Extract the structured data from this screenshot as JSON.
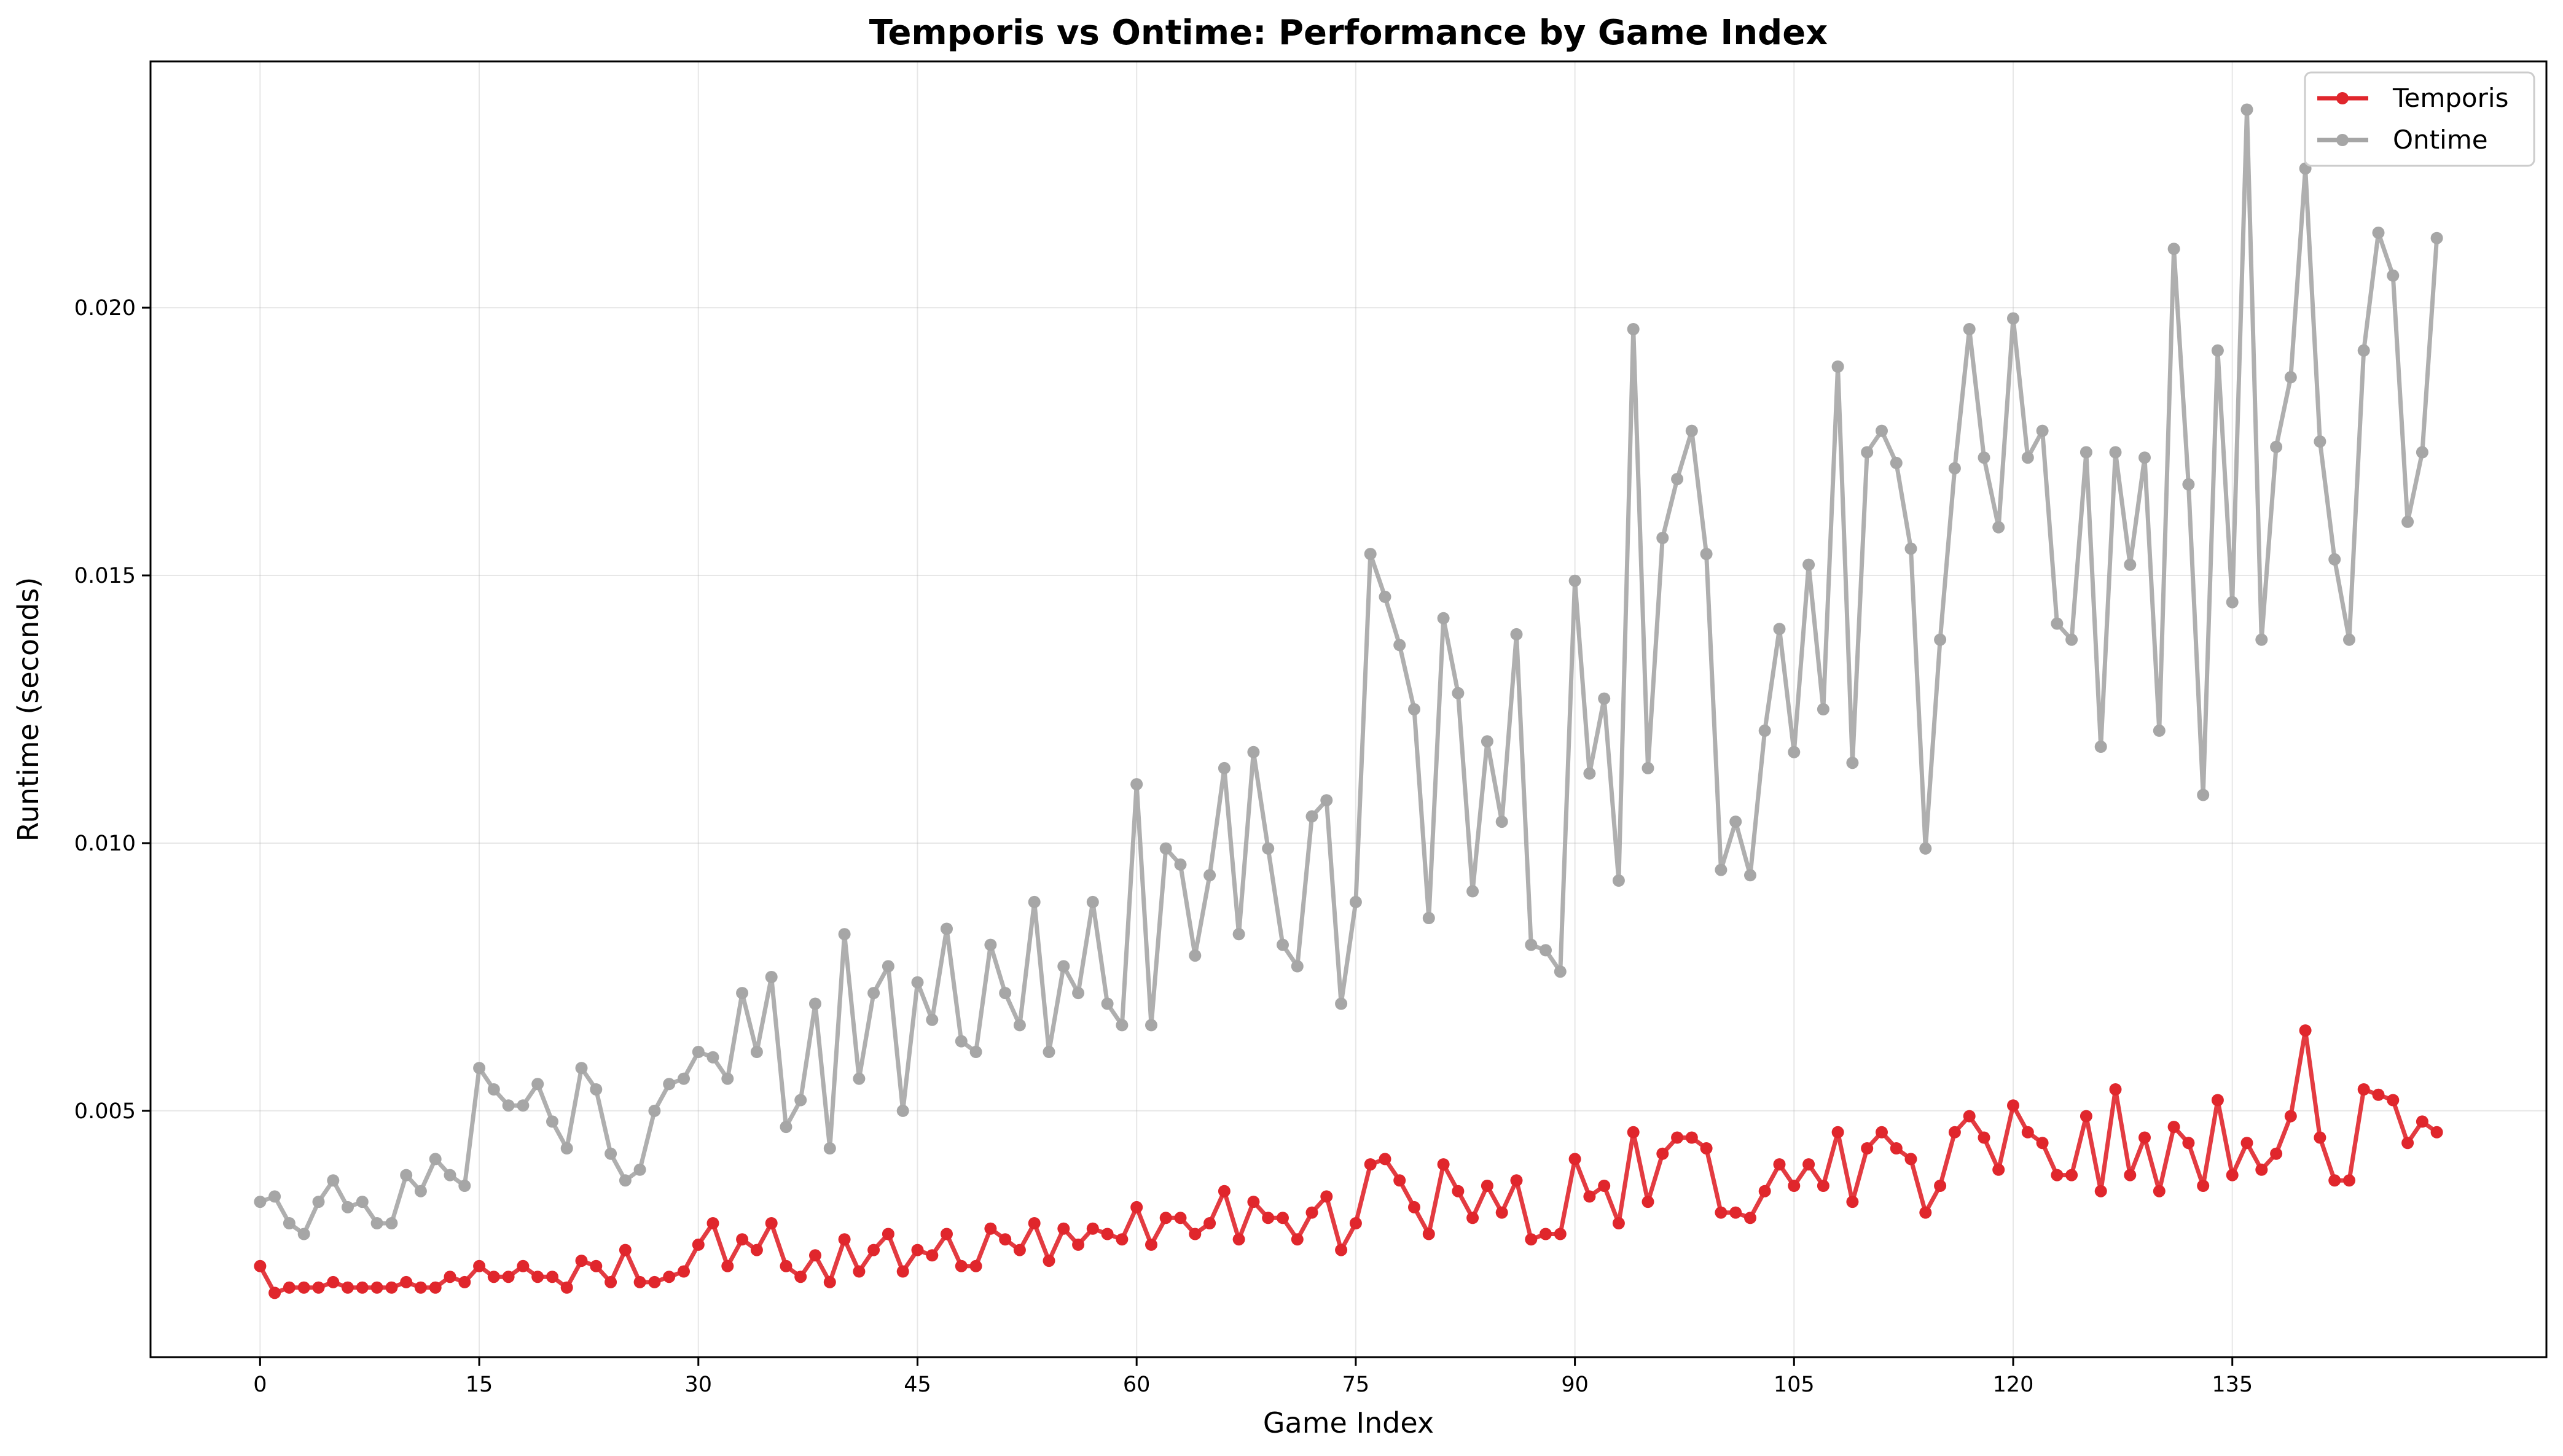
{
  "chart_data": {
    "type": "line",
    "title": "Temporis vs Ontime: Performance by Game Index",
    "xlabel": "Game Index",
    "ylabel": "Runtime (seconds)",
    "xlim": [
      -7.5,
      156.5
    ],
    "ylim": [
      0.0004,
      0.0246
    ],
    "x_ticks": [
      0,
      15,
      30,
      45,
      60,
      75,
      90,
      105,
      120,
      135
    ],
    "y_ticks": [
      0.005,
      0.01,
      0.015,
      0.02
    ],
    "y_tick_labels": [
      "0.005",
      "0.010",
      "0.015",
      "0.020"
    ],
    "grid": true,
    "legend_position": "top-right",
    "series": [
      {
        "name": "Temporis",
        "color": "#e0262c",
        "values": [
          0.0021,
          0.0016,
          0.0017,
          0.0017,
          0.0017,
          0.0018,
          0.0017,
          0.0017,
          0.0017,
          0.0017,
          0.0018,
          0.0017,
          0.0017,
          0.0019,
          0.0018,
          0.0021,
          0.0019,
          0.0019,
          0.0021,
          0.0019,
          0.0019,
          0.0017,
          0.0022,
          0.0021,
          0.0018,
          0.0024,
          0.0018,
          0.0018,
          0.0019,
          0.002,
          0.0025,
          0.0029,
          0.0021,
          0.0026,
          0.0024,
          0.0029,
          0.0021,
          0.0019,
          0.0023,
          0.0018,
          0.0026,
          0.002,
          0.0024,
          0.0027,
          0.002,
          0.0024,
          0.0023,
          0.0027,
          0.0021,
          0.0021,
          0.0028,
          0.0026,
          0.0024,
          0.0029,
          0.0022,
          0.0028,
          0.0025,
          0.0028,
          0.0027,
          0.0026,
          0.0032,
          0.0025,
          0.003,
          0.003,
          0.0027,
          0.0029,
          0.0035,
          0.0026,
          0.0033,
          0.003,
          0.003,
          0.0026,
          0.0031,
          0.0034,
          0.0024,
          0.0029,
          0.004,
          0.0041,
          0.0037,
          0.0032,
          0.0027,
          0.004,
          0.0035,
          0.003,
          0.0036,
          0.0031,
          0.0037,
          0.0026,
          0.0027,
          0.0027,
          0.0041,
          0.0034,
          0.0036,
          0.0029,
          0.0046,
          0.0033,
          0.0042,
          0.0045,
          0.0045,
          0.0043,
          0.0031,
          0.0031,
          0.003,
          0.0035,
          0.004,
          0.0036,
          0.004,
          0.0036,
          0.0046,
          0.0033,
          0.0043,
          0.0046,
          0.0043,
          0.0041,
          0.0031,
          0.0036,
          0.0046,
          0.0049,
          0.0045,
          0.0039,
          0.0051,
          0.0046,
          0.0044,
          0.0038,
          0.0038,
          0.0049,
          0.0035,
          0.0054,
          0.0038,
          0.0045,
          0.0035,
          0.0047,
          0.0044,
          0.0036,
          0.0052,
          0.0038,
          0.0044,
          0.0039,
          0.0042,
          0.0049,
          0.0065,
          0.0045,
          0.0037,
          0.0037,
          0.0054,
          0.0053,
          0.0052,
          0.0044,
          0.0048,
          0.0046
        ]
      },
      {
        "name": "Ontime",
        "color": "#a6a6a6",
        "values": [
          0.0033,
          0.0034,
          0.0029,
          0.0027,
          0.0033,
          0.0037,
          0.0032,
          0.0033,
          0.0029,
          0.0029,
          0.0038,
          0.0035,
          0.0041,
          0.0038,
          0.0036,
          0.0058,
          0.0054,
          0.0051,
          0.0051,
          0.0055,
          0.0048,
          0.0043,
          0.0058,
          0.0054,
          0.0042,
          0.0037,
          0.0039,
          0.005,
          0.0055,
          0.0056,
          0.0061,
          0.006,
          0.0056,
          0.0072,
          0.0061,
          0.0075,
          0.0047,
          0.0052,
          0.007,
          0.0043,
          0.0083,
          0.0056,
          0.0072,
          0.0077,
          0.005,
          0.0074,
          0.0067,
          0.0084,
          0.0063,
          0.0061,
          0.0081,
          0.0072,
          0.0066,
          0.0089,
          0.0061,
          0.0077,
          0.0072,
          0.0089,
          0.007,
          0.0066,
          0.0111,
          0.0066,
          0.0099,
          0.0096,
          0.0079,
          0.0094,
          0.0114,
          0.0083,
          0.0117,
          0.0099,
          0.0081,
          0.0077,
          0.0105,
          0.0108,
          0.007,
          0.0089,
          0.0154,
          0.0146,
          0.0137,
          0.0125,
          0.0086,
          0.0142,
          0.0128,
          0.0091,
          0.0119,
          0.0104,
          0.0139,
          0.0081,
          0.008,
          0.0076,
          0.0149,
          0.0113,
          0.0127,
          0.0093,
          0.0196,
          0.0114,
          0.0157,
          0.0168,
          0.0177,
          0.0154,
          0.0095,
          0.0104,
          0.0094,
          0.0121,
          0.014,
          0.0117,
          0.0152,
          0.0125,
          0.0189,
          0.0115,
          0.0173,
          0.0177,
          0.0171,
          0.0155,
          0.0099,
          0.0138,
          0.017,
          0.0196,
          0.0172,
          0.0159,
          0.0198,
          0.0172,
          0.0177,
          0.0141,
          0.0138,
          0.0173,
          0.0118,
          0.0173,
          0.0152,
          0.0172,
          0.0121,
          0.0211,
          0.0167,
          0.0109,
          0.0192,
          0.0145,
          0.0237,
          0.0138,
          0.0174,
          0.0187,
          0.0226,
          0.0175,
          0.0153,
          0.0138,
          0.0192,
          0.0214,
          0.0206,
          0.016,
          0.0173,
          0.0213
        ]
      }
    ]
  }
}
